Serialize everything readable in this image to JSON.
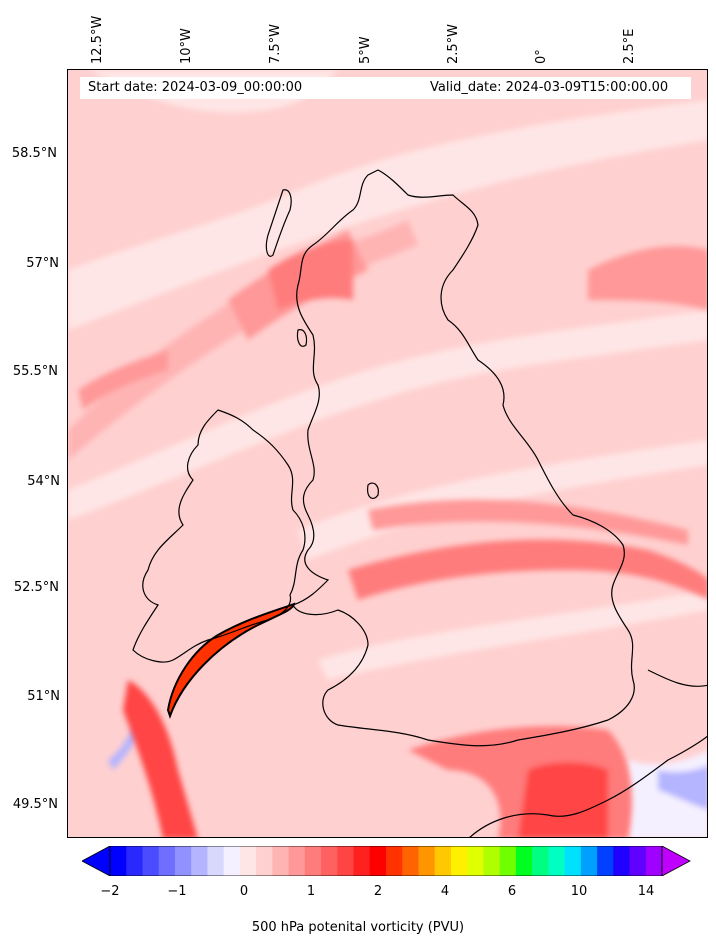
{
  "header": {
    "start_date": "Start date: 2024-03-09_00:00:00",
    "valid_date": "Valid_date: 2024-03-09T15:00:00.00"
  },
  "lon_labels": [
    "12.5°W",
    "10°W",
    "7.5°W",
    "5°W",
    "2.5°W",
    "0°",
    "2.5°E"
  ],
  "lat_labels": [
    "58.5°N",
    "57°N",
    "55.5°N",
    "54°N",
    "52.5°N",
    "51°N",
    "49.5°N"
  ],
  "colorbar": {
    "label": "500 hPa potenital vorticity (PVU)",
    "ticks": [
      "−2",
      "−1",
      "0",
      "1",
      "2",
      "4",
      "6",
      "10",
      "14"
    ],
    "colors": [
      "#0000ff",
      "#2828ff",
      "#4b4bff",
      "#6e6eff",
      "#9191ff",
      "#b4b4ff",
      "#d8d8ff",
      "#f5f0ff",
      "#ffe6e6",
      "#ffd0d0",
      "#ffb4b4",
      "#ff9898",
      "#ff7c7c",
      "#ff6060",
      "#ff4444",
      "#ff2020",
      "#ff0000",
      "#ff3200",
      "#ff6400",
      "#ff9600",
      "#ffc800",
      "#fff000",
      "#e0ff00",
      "#b0ff00",
      "#70ff00",
      "#00ff20",
      "#00ff80",
      "#00ffc0",
      "#00e0ff",
      "#00a0ff",
      "#0040ff",
      "#2000ff",
      "#6000ff",
      "#a000ff"
    ],
    "under_color": "#0000ff",
    "over_color": "#c000ff"
  },
  "map": {
    "background_color": "#ffd0d0",
    "coastline_color": "#000000"
  }
}
